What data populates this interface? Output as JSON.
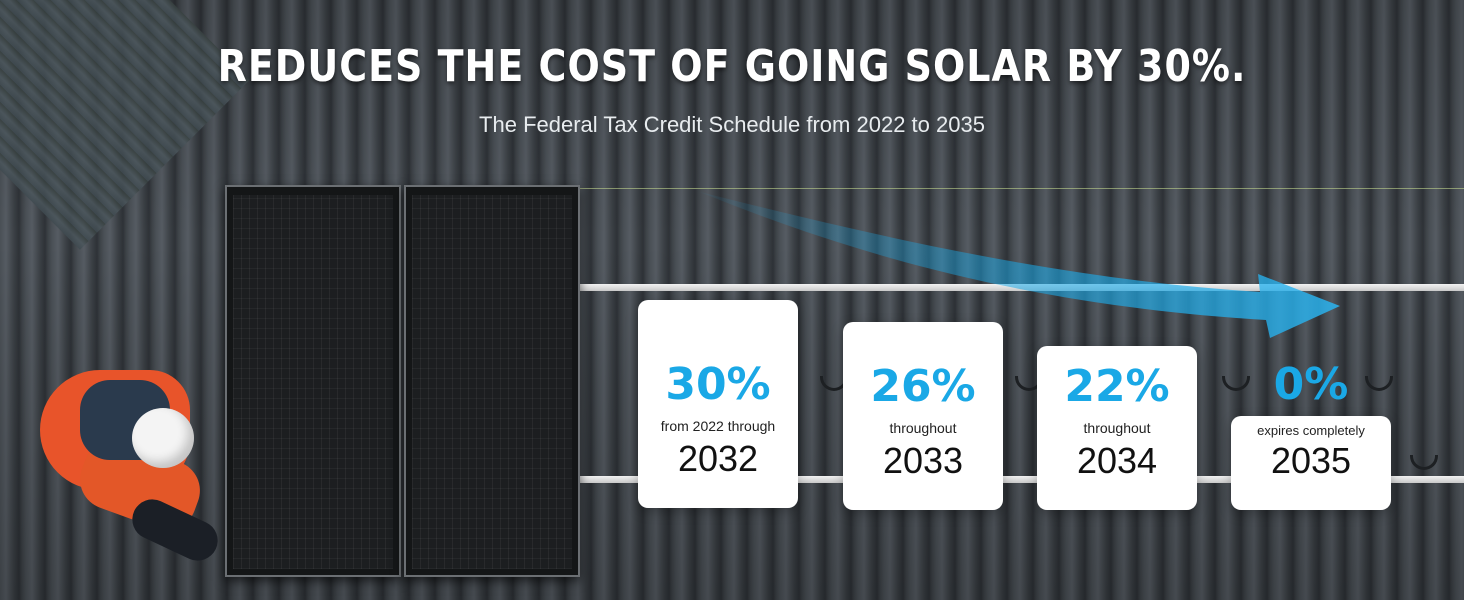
{
  "header": {
    "title": "REDUCES THE COST OF GOING SOLAR BY 30%.",
    "subtitle": "The Federal Tax Credit Schedule from 2022 to 2035"
  },
  "cards": [
    {
      "percent": "30%",
      "description": "from 2022 through",
      "year": "2032"
    },
    {
      "percent": "26%",
      "description": "throughout",
      "year": "2033"
    },
    {
      "percent": "22%",
      "description": "throughout",
      "year": "2034"
    },
    {
      "percent": "0%",
      "description": "expires completely",
      "year": "2035"
    }
  ],
  "colors": {
    "accent": "#1aa8e6",
    "card_bg": "#ffffff",
    "roof": "#4a5056"
  }
}
